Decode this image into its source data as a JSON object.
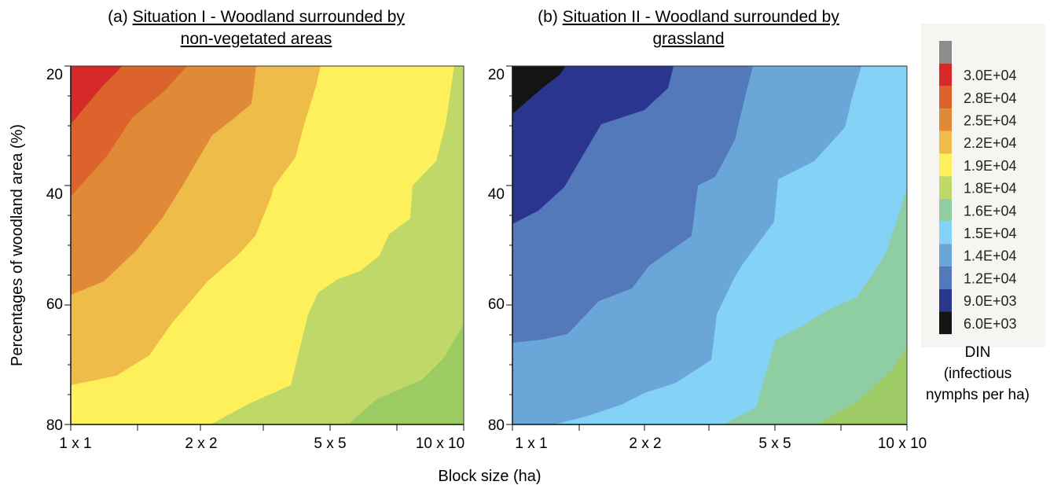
{
  "chart_data": [
    {
      "type": "contour",
      "title_prefix": "(a) ",
      "title_lines": [
        "Situation I - Woodland surrounded by",
        "non-vegetated areas"
      ],
      "x": {
        "categories": [
          "1 x 1",
          "2 x 2",
          "5 x 5",
          "10 x 10"
        ]
      },
      "y": {
        "ticks": [
          20,
          40,
          60,
          80
        ],
        "range": [
          20,
          80
        ],
        "label": "Percentages of woodland area (%)"
      },
      "levels": [
        {
          "above": 30000,
          "color": "#d62a2a"
        },
        {
          "above": 27500,
          "color": "#dc642c"
        },
        {
          "above": 25000,
          "color": "#e08a37"
        },
        {
          "above": 22500,
          "color": "#efbc4a"
        },
        {
          "above": 19500,
          "color": "#fef05a"
        },
        {
          "above": 18000,
          "color": "#bfd868"
        },
        {
          "above": 16000,
          "color": "#9dcb63"
        }
      ]
    },
    {
      "type": "contour",
      "title_prefix": "(b) ",
      "title_lines": [
        "Situation II - Woodland surrounded by",
        "grassland"
      ],
      "x": {
        "categories": [
          "1 x 1",
          "2 x 2",
          "5 x 5",
          "10 x 10"
        ]
      },
      "y": {
        "ticks": [
          20,
          40,
          60,
          80
        ],
        "range": [
          20,
          80
        ]
      },
      "levels": [
        {
          "above": 6000,
          "color": "#141414"
        },
        {
          "above": 9000,
          "color": "#2a3590"
        },
        {
          "above": 12000,
          "color": "#5379ba"
        },
        {
          "above": 14000,
          "color": "#6aa6d8"
        },
        {
          "above": 15000,
          "color": "#84d2f5"
        },
        {
          "above": 16000,
          "color": "#8fcda2"
        },
        {
          "above": 18000,
          "color": "#9fcb67"
        }
      ]
    }
  ],
  "xlabel": "Block size (ha)",
  "legend": {
    "entries": [
      {
        "label": "",
        "color": "#8c8c8c"
      },
      {
        "label": "3.0E+04",
        "color": "#d62a2a"
      },
      {
        "label": "2.8E+04",
        "color": "#dc642c"
      },
      {
        "label": "2.5E+04",
        "color": "#e08a37"
      },
      {
        "label": "2.2E+04",
        "color": "#efbc4a"
      },
      {
        "label": "1.9E+04",
        "color": "#fef05a"
      },
      {
        "label": "1.8E+04",
        "color": "#bfd868"
      },
      {
        "label": "1.6E+04",
        "color": "#8fcda2"
      },
      {
        "label": "1.5E+04",
        "color": "#84d2f5"
      },
      {
        "label": "1.4E+04",
        "color": "#6aa6d8"
      },
      {
        "label": "1.2E+04",
        "color": "#5379ba"
      },
      {
        "label": "9.0E+03",
        "color": "#2a3590"
      },
      {
        "label": "6.0E+03",
        "color": "#141414"
      }
    ],
    "title_lines": [
      "DIN",
      "(infectious",
      "nymphs per ha)"
    ]
  }
}
